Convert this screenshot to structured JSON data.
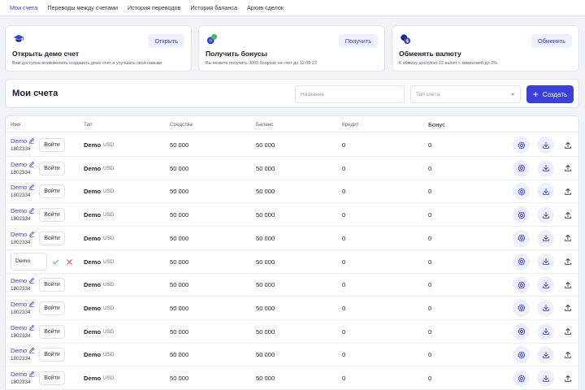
{
  "nav": {
    "tabs": [
      {
        "label": "Мои счета",
        "active": true
      },
      {
        "label": "Переводы между счетами",
        "active": false
      },
      {
        "label": "История переводов",
        "active": false
      },
      {
        "label": "История баланса",
        "active": false
      },
      {
        "label": "Архив сделок",
        "active": false
      }
    ]
  },
  "cards": [
    {
      "icon": "graduation-cap-icon",
      "title": "Открыть демо счет",
      "description": "Вам доступна возможность создавать демо счет и улучшать свои навыки",
      "button": "Открыть"
    },
    {
      "icon": "bonus-coins-icon",
      "title": "Получить бонусы",
      "description": "Вы можете получить 3000 бонусов на счет до 12.09.23",
      "button": "Получить"
    },
    {
      "icon": "currency-exchange-icon",
      "title": "Обменять валюту",
      "description": "К обмену доступно 12 валют с комиссией до 3%",
      "button": "Обменять"
    }
  ],
  "toolbar": {
    "title": "Мои счета",
    "name_placeholder": "Название",
    "type_placeholder": "Тип счета",
    "create_label": "Создать"
  },
  "table": {
    "headers": {
      "name": "Имя",
      "type": "Тип",
      "funds": "Средства",
      "balance": "Баланс",
      "credit": "Кредит",
      "bonus": "Бонус"
    },
    "login_label": "Войти",
    "rows": [
      {
        "name": "Demo",
        "number": "1802334",
        "type": "Demo",
        "currency": "USD",
        "funds": "50 000",
        "balance": "50 000",
        "credit": "0",
        "bonus": "0"
      },
      {
        "name": "Demo",
        "number": "1802334",
        "type": "Demo",
        "currency": "USD",
        "funds": "50 000",
        "balance": "50 000",
        "credit": "0",
        "bonus": "0"
      },
      {
        "name": "Demo",
        "number": "1802334",
        "type": "Demo",
        "currency": "USD",
        "funds": "50 000",
        "balance": "50 000",
        "credit": "0",
        "bonus": "0"
      },
      {
        "name": "Demo",
        "number": "1802334",
        "type": "Demo",
        "currency": "USD",
        "funds": "50 000",
        "balance": "50 000",
        "credit": "0",
        "bonus": "0"
      },
      {
        "name": "Demo",
        "number": "1802334",
        "type": "Demo",
        "currency": "USD",
        "funds": "50 000",
        "balance": "50 000",
        "credit": "0",
        "bonus": "0"
      },
      {
        "name": "Demo",
        "number": "1802334",
        "type": "Demo",
        "currency": "USD",
        "funds": "50 000",
        "balance": "50 000",
        "credit": "0",
        "bonus": "0",
        "editing": true,
        "edit_value": "Demo"
      },
      {
        "name": "Demo",
        "number": "1802334",
        "type": "Demo",
        "currency": "USD",
        "funds": "50 000",
        "balance": "50 000",
        "credit": "0",
        "bonus": "0"
      },
      {
        "name": "Demo",
        "number": "1802334",
        "type": "Demo",
        "currency": "USD",
        "funds": "50 000",
        "balance": "50 000",
        "credit": "0",
        "bonus": "0"
      },
      {
        "name": "Demo",
        "number": "1802334",
        "type": "Demo",
        "currency": "USD",
        "funds": "50 000",
        "balance": "50 000",
        "credit": "0",
        "bonus": "0"
      },
      {
        "name": "Demo",
        "number": "1802334",
        "type": "Demo",
        "currency": "USD",
        "funds": "50 000",
        "balance": "50 000",
        "credit": "0",
        "bonus": "0"
      },
      {
        "name": "Demo",
        "number": "1802334",
        "type": "Demo",
        "currency": "USD",
        "funds": "50 000",
        "balance": "50 000",
        "credit": "0",
        "bonus": "0"
      }
    ]
  },
  "colors": {
    "accent": "#3a41d8",
    "accent_soft": "#eef0fd",
    "success": "#3bbf6f",
    "danger": "#e5484d",
    "background": "#f2f3f7"
  }
}
